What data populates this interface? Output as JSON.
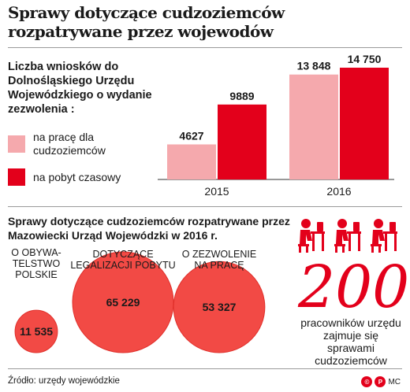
{
  "title": "Sprawy dotyczące cudzoziemców rozpatrywane przez wojewodów",
  "colors": {
    "light": "#f5a9ad",
    "red": "#e3001b",
    "circle": "#f24a45",
    "circle_edge": "#e02f2a"
  },
  "chart_data": [
    {
      "type": "bar",
      "title": "Liczba wniosków do Dolnośląskiego Urzędu Wojewódzkiego o wydanie zezwolenia :",
      "categories": [
        "2015",
        "2016"
      ],
      "series": [
        {
          "name": "na pracę dla cudzoziemców",
          "values": [
            4627,
            13848
          ],
          "labels": [
            "4627",
            "13 848"
          ]
        },
        {
          "name": "na pobyt czasowy",
          "values": [
            9889,
            14750
          ],
          "labels": [
            "9889",
            "14 750"
          ]
        }
      ]
    },
    {
      "type": "bubble",
      "title": "Sprawy dotyczące cudzoziemców rozpatrywane przez Mazowiecki Urząd Wojewódzki w 2016 r.",
      "categories": [
        "O OBYWA-TELSTWO POLSKIE",
        "DOTYCZĄCE LEGALIZACJI POBYTU",
        "O ZEZWOLENIE NA PRACĘ"
      ],
      "category_lines": [
        [
          "O OBYWA-",
          "TELSTWO",
          "POLSKIE"
        ],
        [
          "DOTYCZĄCE",
          "LEGALIZACJI POBYTU"
        ],
        [
          "O ZEZWOLENIE",
          "NA PRACĘ"
        ]
      ],
      "values": [
        11535,
        65229,
        53327
      ],
      "labels": [
        "11 535",
        "65 229",
        "53 327"
      ]
    }
  ],
  "staff": {
    "number": "200",
    "text": "pracowników urzędu zajmuje się sprawami cudzoziemców"
  },
  "source": "Źródło: urzędy wojewódzkie",
  "credit": "MC"
}
